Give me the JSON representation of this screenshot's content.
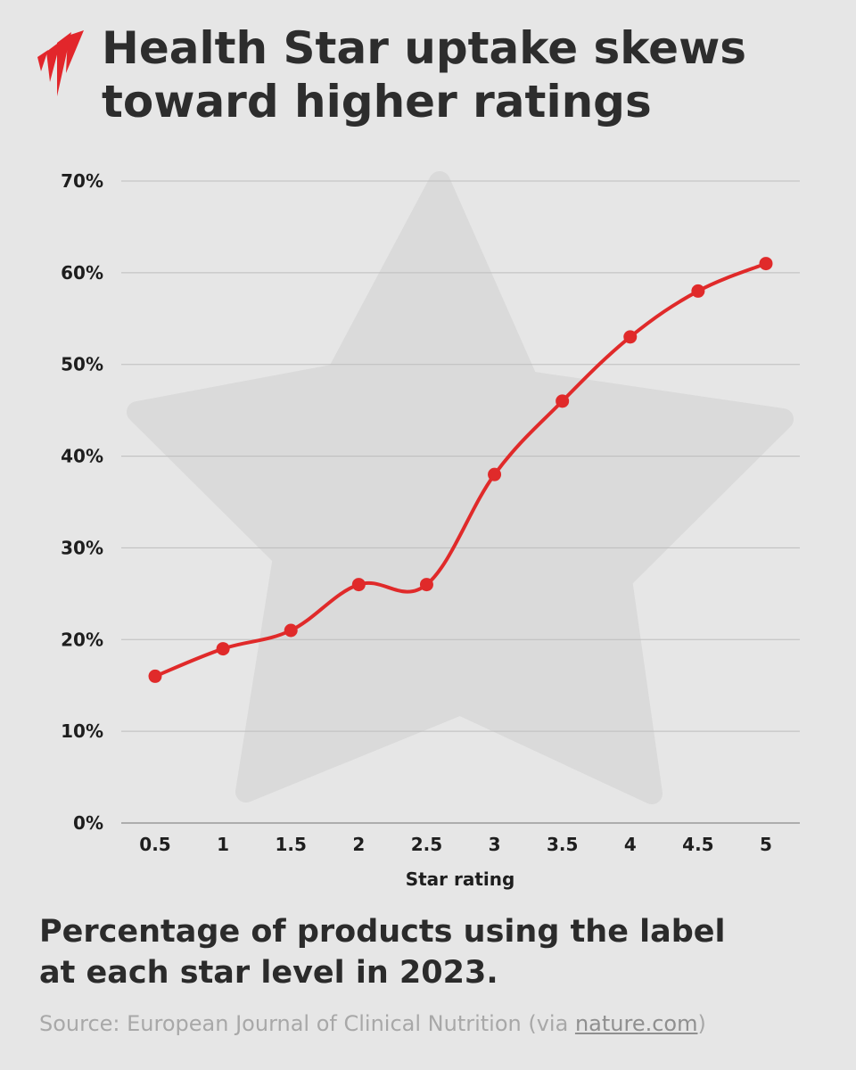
{
  "title": "Health Star uptake skews toward higher ratings",
  "subtitle": "Percentage of products using the label at each star level in 2023.",
  "source": {
    "prefix": "Source: European Journal of Clinical Nutrition (via ",
    "link": "nature.com",
    "suffix": ")"
  },
  "logo": {
    "icon": "sbs-logo-icon",
    "color": "#e2262b"
  },
  "colors": {
    "line": "#e02a2a",
    "background": "#e6e6e6",
    "star": "#d9d9d9",
    "grid": "#bdbdbd"
  },
  "chart_data": {
    "type": "line",
    "categories": [
      "0.5",
      "1",
      "1.5",
      "2",
      "2.5",
      "3",
      "3.5",
      "4",
      "4.5",
      "5"
    ],
    "series": [
      {
        "values": [
          16,
          19,
          21,
          26,
          26,
          38,
          46,
          53,
          58,
          61
        ]
      }
    ],
    "xlabel": "Star rating",
    "ylabel": "",
    "ylim": [
      0,
      70
    ],
    "yticks": [
      0,
      10,
      20,
      30,
      40,
      50,
      60,
      70
    ],
    "ytick_labels": [
      "0%",
      "10%",
      "20%",
      "30%",
      "40%",
      "50%",
      "60%",
      "70%"
    ],
    "grid": true,
    "smooth": true,
    "legend": "none"
  }
}
